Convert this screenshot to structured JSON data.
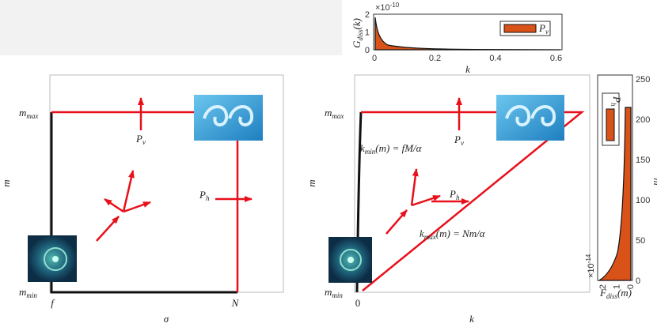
{
  "top_inset": {
    "y_label": {
      "base": "G",
      "sub": "diss",
      "rest": "(k)"
    },
    "x_label": "k",
    "exponent": {
      "base": "×10",
      "sup": "-10"
    },
    "yticks": [
      "0",
      "1",
      "2"
    ],
    "xticks": [
      "0",
      "0.2",
      "0.4",
      "0.6"
    ],
    "legend": {
      "base": "P",
      "sub": "v"
    }
  },
  "left_panel": {
    "y_label": "m",
    "x_label": "σ",
    "m_max": {
      "base": "m",
      "sub": "max"
    },
    "m_min": {
      "base": "m",
      "sub": "min"
    },
    "x_start": "f",
    "x_end": "N",
    "p_v": {
      "base": "P",
      "sub": "v"
    },
    "p_h": {
      "base": "P",
      "sub": "h"
    }
  },
  "right_panel": {
    "y_label": "m",
    "x_label": "k",
    "m_max": {
      "base": "m",
      "sub": "max"
    },
    "m_min": {
      "base": "m",
      "sub": "min"
    },
    "x_start": "0",
    "p_v": {
      "base": "P",
      "sub": "v"
    },
    "p_h": {
      "base": "P",
      "sub": "h"
    },
    "k_min": {
      "base": "k",
      "sub": "min",
      "rest": "(m) = fM/α"
    },
    "k_max": {
      "base": "k",
      "sub": "max",
      "rest": "(m) = Nm/α"
    }
  },
  "side_inset": {
    "y_label": "m",
    "x_label": {
      "base": "F",
      "sub": "diss",
      "rest": "(m)"
    },
    "exponent": {
      "base": "×10",
      "sup": "-14"
    },
    "yticks": [
      "0",
      "50",
      "100",
      "150",
      "200",
      "250"
    ],
    "xticks": [
      "2",
      "1",
      "0"
    ],
    "legend": {
      "base": "P",
      "sub": "h"
    }
  }
}
